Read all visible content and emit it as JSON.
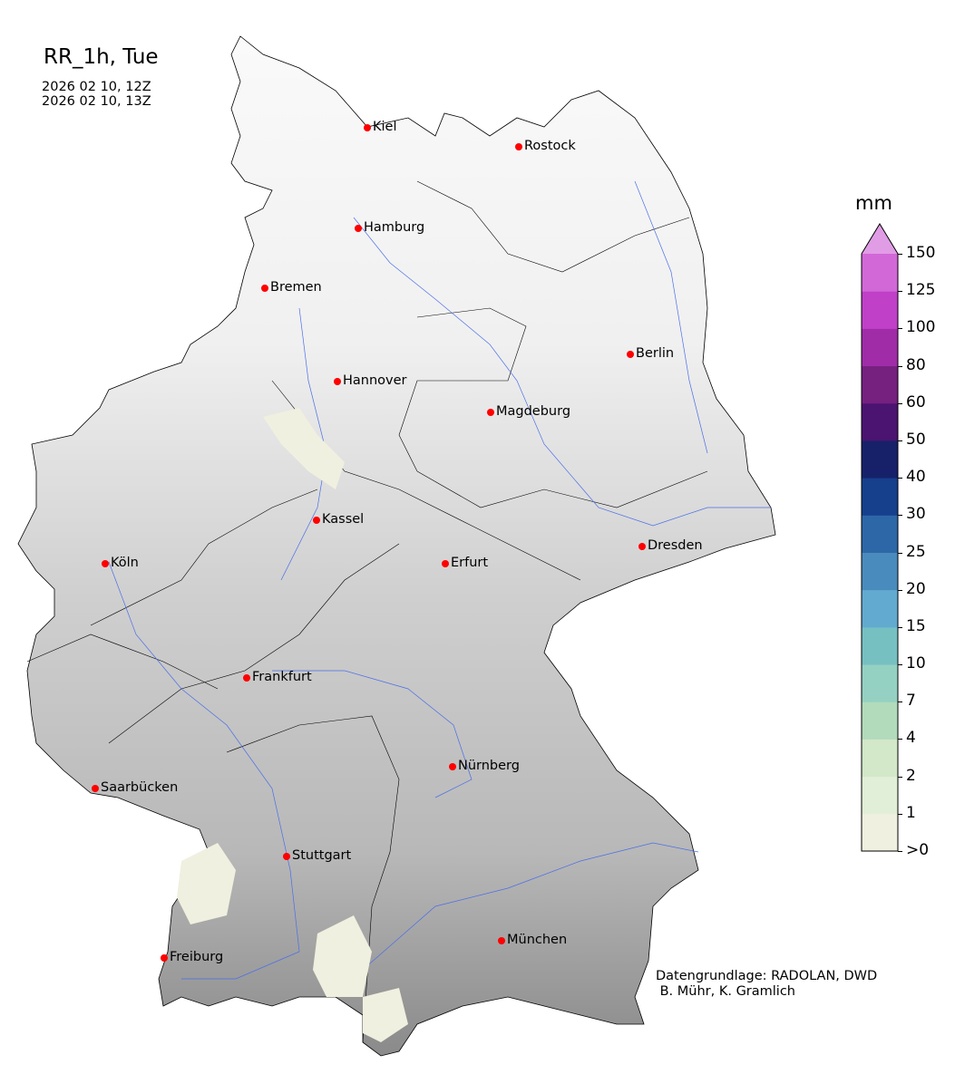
{
  "title": "RR_1h, Tue",
  "subtitle_lines": [
    "2026 02 10, 12Z",
    "2026 02 10, 13Z"
  ],
  "cities": [
    "Kiel",
    "Rostock",
    "Hamburg",
    "Bremen",
    "Berlin",
    "Hannover",
    "Magdeburg",
    "Kassel",
    "Köln",
    "Erfurt",
    "Dresden",
    "Frankfurt",
    "Nürnberg",
    "Saarbücken",
    "Stuttgart",
    "München",
    "Freiburg"
  ],
  "colorbar": {
    "unit": "mm",
    "tick_labels": [
      ">0",
      "1",
      "2",
      "4",
      "7",
      "10",
      "15",
      "20",
      "25",
      "30",
      "40",
      "50",
      "60",
      "80",
      "100",
      "125",
      "150"
    ],
    "colors": [
      "#f0f0e0",
      "#e2efd8",
      "#d2e8c8",
      "#b2dbbc",
      "#95d1c2",
      "#76c0c2",
      "#63aad0",
      "#4a8bbd",
      "#2d67a8",
      "#163f8c",
      "#17216a",
      "#4a1470",
      "#762080",
      "#a02ca8",
      "#c040c8",
      "#d268d8"
    ],
    "extend_color": "#e09ce4",
    "extend": "max"
  },
  "credits": [
    "Datengrundlage: RADOLAN, DWD",
    " B. Mühr, K. Gramlich"
  ],
  "colors": {
    "city_marker": "#ff0000",
    "rivers": "#4a6ee8",
    "terrain": "grayscale"
  }
}
